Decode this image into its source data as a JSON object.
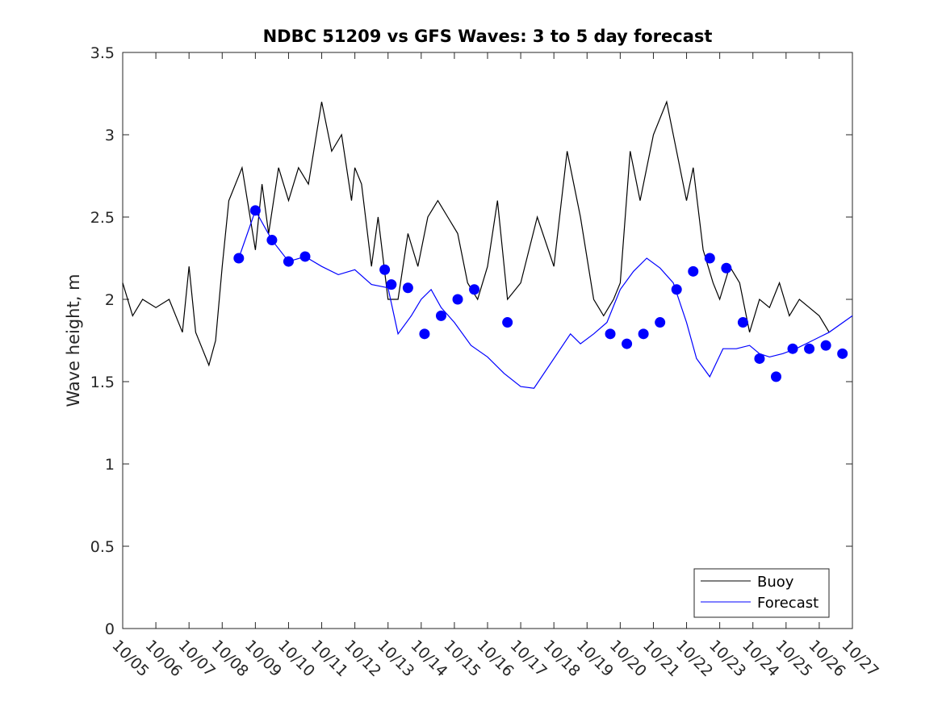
{
  "chart_data": {
    "type": "line",
    "title": "NDBC 51209 vs GFS Waves: 3 to 5 day forecast",
    "xlabel": "",
    "ylabel": "Wave height, m",
    "ylim": [
      0,
      3.5
    ],
    "xlim": [
      0,
      22
    ],
    "yticks": [
      0,
      0.5,
      1,
      1.5,
      2,
      2.5,
      3,
      3.5
    ],
    "ytick_labels": [
      "0",
      "0.5",
      "1",
      "1.5",
      "2",
      "2.5",
      "3",
      "3.5"
    ],
    "xticks": [
      0,
      1,
      2,
      3,
      4,
      5,
      6,
      7,
      8,
      9,
      10,
      11,
      12,
      13,
      14,
      15,
      16,
      17,
      18,
      19,
      20,
      21,
      22
    ],
    "xtick_labels": [
      "10/05",
      "10/06",
      "10/07",
      "10/08",
      "10/09",
      "10/10",
      "10/11",
      "10/12",
      "10/13",
      "10/14",
      "10/15",
      "10/16",
      "10/17",
      "10/18",
      "10/19",
      "10/20",
      "10/21",
      "10/22",
      "10/23",
      "10/24",
      "10/25",
      "10/26",
      "10/27"
    ],
    "legend": {
      "position": "bottom-right",
      "entries": [
        "Buoy",
        "Forecast"
      ]
    },
    "colors": {
      "buoy": "#000000",
      "forecast": "#0000ff",
      "axis": "#262626"
    },
    "series": [
      {
        "name": "Buoy",
        "color": "#000000",
        "x": [
          0,
          0.3,
          0.6,
          1.0,
          1.4,
          1.8,
          2.0,
          2.2,
          2.4,
          2.6,
          2.8,
          3.0,
          3.2,
          3.6,
          4.0,
          4.2,
          4.4,
          4.7,
          5.0,
          5.3,
          5.6,
          6.0,
          6.3,
          6.6,
          6.9,
          7.0,
          7.2,
          7.5,
          7.7,
          8.0,
          8.3,
          8.6,
          8.9,
          9.2,
          9.5,
          9.8,
          10.1,
          10.4,
          10.7,
          11.0,
          11.3,
          11.6,
          12.0,
          12.5,
          13.0,
          13.4,
          13.8,
          14.2,
          14.5,
          14.8,
          15.0,
          15.3,
          15.6,
          16.0,
          16.4,
          16.7,
          17.0,
          17.2,
          17.5,
          17.8,
          18.0,
          18.3,
          18.6,
          18.9,
          19.2,
          19.5,
          19.8,
          20.1,
          20.4,
          20.7,
          21.0,
          21.3
        ],
        "y": [
          2.1,
          1.9,
          2.0,
          1.95,
          2.0,
          1.8,
          2.2,
          1.8,
          1.7,
          1.6,
          1.75,
          2.2,
          2.6,
          2.8,
          2.3,
          2.7,
          2.4,
          2.8,
          2.6,
          2.8,
          2.7,
          3.2,
          2.9,
          3.0,
          2.6,
          2.8,
          2.7,
          2.2,
          2.5,
          2.0,
          2.0,
          2.4,
          2.2,
          2.5,
          2.6,
          2.5,
          2.4,
          2.1,
          2.0,
          2.2,
          2.6,
          2.0,
          2.1,
          2.5,
          2.2,
          2.9,
          2.5,
          2.0,
          1.9,
          2.0,
          2.1,
          2.9,
          2.6,
          3.0,
          3.2,
          2.9,
          2.6,
          2.8,
          2.3,
          2.1,
          2.0,
          2.2,
          2.1,
          1.8,
          2.0,
          1.95,
          2.1,
          1.9,
          2.0,
          1.95,
          1.9,
          1.8
        ]
      },
      {
        "name": "Forecast",
        "color": "#0000ff",
        "x": [
          3.5,
          4.0,
          4.5,
          5.0,
          5.5,
          6.0,
          6.5,
          7.0,
          7.5,
          8.0,
          8.3,
          8.7,
          9.0,
          9.3,
          9.6,
          10.0,
          10.5,
          11.0,
          11.5,
          12.0,
          12.4,
          13.5,
          13.8,
          14.2,
          14.6,
          15.0,
          15.4,
          15.8,
          16.2,
          16.6,
          17.0,
          17.3,
          17.7,
          18.1,
          18.5,
          18.9,
          19.2,
          19.5,
          19.9,
          20.3,
          20.8,
          21.3,
          22.0
        ],
        "y": [
          2.25,
          2.54,
          2.36,
          2.23,
          2.26,
          2.2,
          2.15,
          2.18,
          2.09,
          2.07,
          1.79,
          1.9,
          2.0,
          2.06,
          1.95,
          1.86,
          1.72,
          1.65,
          1.55,
          1.47,
          1.46,
          1.79,
          1.73,
          1.79,
          1.86,
          2.06,
          2.17,
          2.25,
          2.19,
          2.1,
          1.86,
          1.64,
          1.53,
          1.7,
          1.7,
          1.72,
          1.67,
          1.65,
          1.67,
          1.7,
          1.75,
          1.8,
          1.9
        ]
      }
    ],
    "markers": {
      "name": "Forecast points",
      "color": "#0000ff",
      "x": [
        3.5,
        4.0,
        4.5,
        5.0,
        5.5,
        7.9,
        8.1,
        8.6,
        9.1,
        9.6,
        10.1,
        10.6,
        11.6,
        14.7,
        15.2,
        15.7,
        16.2,
        16.7,
        17.2,
        17.7,
        18.2,
        18.7,
        19.2,
        19.7,
        20.2,
        20.7,
        21.2,
        21.7
      ],
      "y": [
        2.25,
        2.54,
        2.36,
        2.23,
        2.26,
        2.18,
        2.09,
        2.07,
        1.79,
        1.9,
        2.0,
        2.06,
        1.86,
        1.79,
        1.73,
        1.79,
        1.86,
        2.06,
        2.17,
        2.25,
        2.19,
        1.86,
        1.64,
        1.53,
        1.7,
        1.7,
        1.72,
        1.67
      ]
    }
  }
}
